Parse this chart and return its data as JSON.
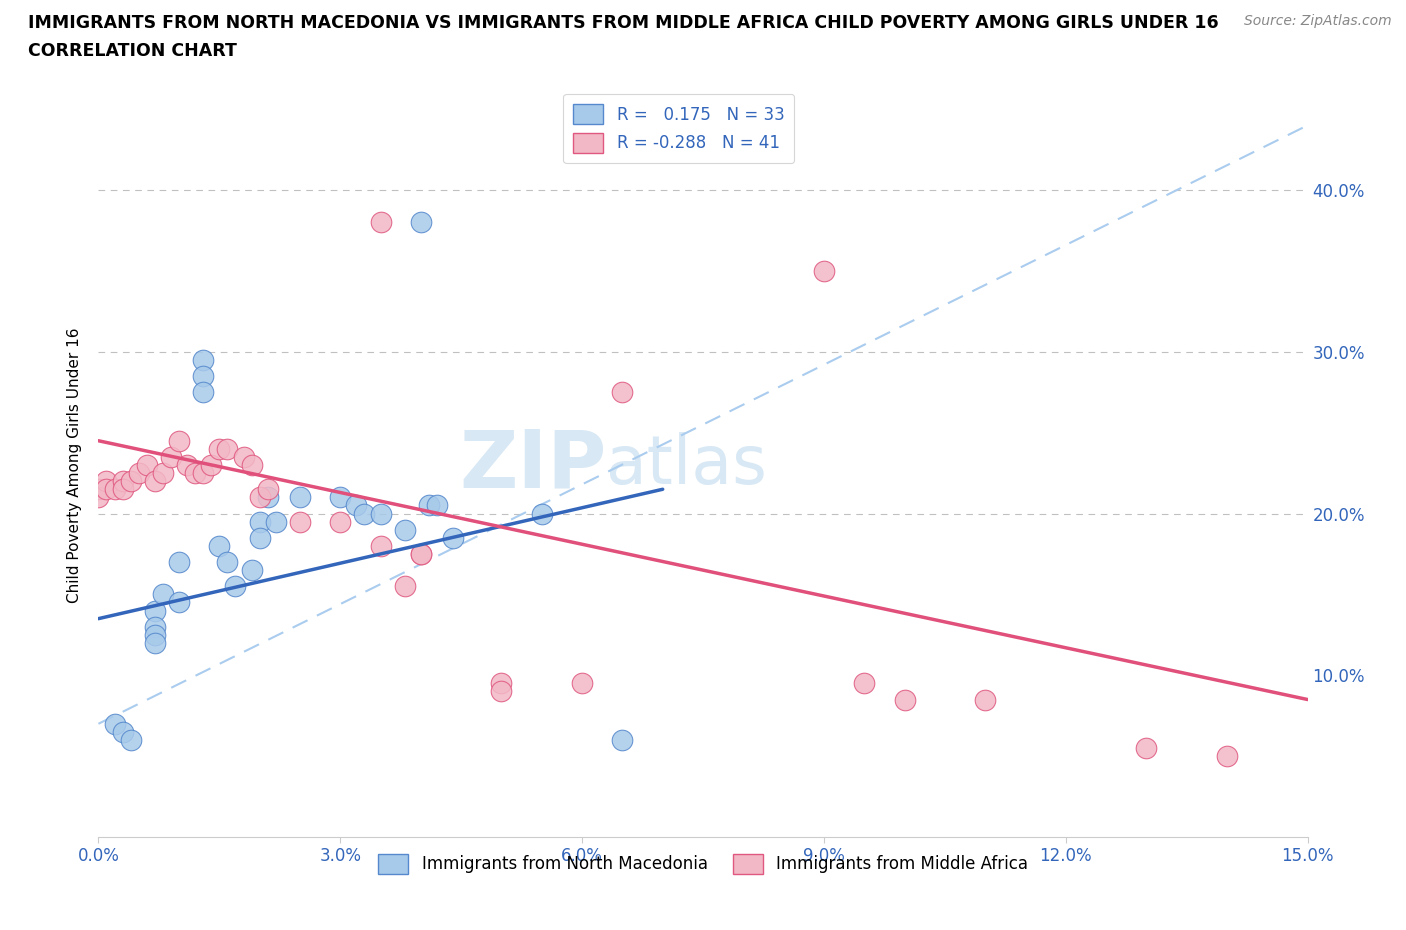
{
  "title_line1": "IMMIGRANTS FROM NORTH MACEDONIA VS IMMIGRANTS FROM MIDDLE AFRICA CHILD POVERTY AMONG GIRLS UNDER 16",
  "title_line2": "CORRELATION CHART",
  "source": "Source: ZipAtlas.com",
  "ylabel": "Child Poverty Among Girls Under 16",
  "xlim": [
    0.0,
    0.15
  ],
  "ylim": [
    0.0,
    0.46
  ],
  "xticks": [
    0.0,
    0.03,
    0.06,
    0.09,
    0.12,
    0.15
  ],
  "xtick_labels": [
    "0.0%",
    "3.0%",
    "6.0%",
    "9.0%",
    "12.0%",
    "15.0%"
  ],
  "ytick_positions": [
    0.1,
    0.2,
    0.3,
    0.4
  ],
  "ytick_labels": [
    "10.0%",
    "20.0%",
    "30.0%",
    "40.0%"
  ],
  "hlines": [
    0.2,
    0.3,
    0.4
  ],
  "blue_R": 0.175,
  "blue_N": 33,
  "pink_R": -0.288,
  "pink_N": 41,
  "blue_color": "#A8CAEA",
  "pink_color": "#F2B8C6",
  "blue_edge_color": "#5588CC",
  "pink_edge_color": "#E05880",
  "blue_line_color": "#3366BB",
  "pink_line_color": "#E0507A",
  "diag_line_color": "#AACCEE",
  "watermark_color": "#D8E8F4",
  "blue_line_x": [
    0.0,
    0.07
  ],
  "blue_line_y": [
    0.135,
    0.215
  ],
  "pink_line_x": [
    0.0,
    0.15
  ],
  "pink_line_y": [
    0.245,
    0.085
  ],
  "diag_line_x": [
    0.0,
    0.15
  ],
  "diag_line_y": [
    0.07,
    0.44
  ],
  "blue_scatter_x": [
    0.007,
    0.007,
    0.007,
    0.007,
    0.008,
    0.01,
    0.01,
    0.013,
    0.013,
    0.013,
    0.015,
    0.016,
    0.017,
    0.019,
    0.02,
    0.02,
    0.021,
    0.022,
    0.025,
    0.03,
    0.032,
    0.033,
    0.035,
    0.038,
    0.04,
    0.041,
    0.042,
    0.044,
    0.002,
    0.003,
    0.004,
    0.055,
    0.065
  ],
  "blue_scatter_y": [
    0.14,
    0.13,
    0.125,
    0.12,
    0.15,
    0.17,
    0.145,
    0.295,
    0.285,
    0.275,
    0.18,
    0.17,
    0.155,
    0.165,
    0.195,
    0.185,
    0.21,
    0.195,
    0.21,
    0.21,
    0.205,
    0.2,
    0.2,
    0.19,
    0.38,
    0.205,
    0.205,
    0.185,
    0.07,
    0.065,
    0.06,
    0.2,
    0.06
  ],
  "pink_scatter_x": [
    0.0,
    0.0,
    0.001,
    0.001,
    0.002,
    0.003,
    0.003,
    0.004,
    0.005,
    0.006,
    0.007,
    0.008,
    0.009,
    0.01,
    0.011,
    0.012,
    0.013,
    0.014,
    0.015,
    0.016,
    0.018,
    0.019,
    0.02,
    0.021,
    0.025,
    0.03,
    0.035,
    0.038,
    0.04,
    0.04,
    0.05,
    0.05,
    0.06,
    0.065,
    0.09,
    0.095,
    0.1,
    0.11,
    0.13,
    0.14,
    0.035
  ],
  "pink_scatter_y": [
    0.215,
    0.21,
    0.22,
    0.215,
    0.215,
    0.22,
    0.215,
    0.22,
    0.225,
    0.23,
    0.22,
    0.225,
    0.235,
    0.245,
    0.23,
    0.225,
    0.225,
    0.23,
    0.24,
    0.24,
    0.235,
    0.23,
    0.21,
    0.215,
    0.195,
    0.195,
    0.18,
    0.155,
    0.175,
    0.175,
    0.095,
    0.09,
    0.095,
    0.275,
    0.35,
    0.095,
    0.085,
    0.085,
    0.055,
    0.05,
    0.38
  ]
}
